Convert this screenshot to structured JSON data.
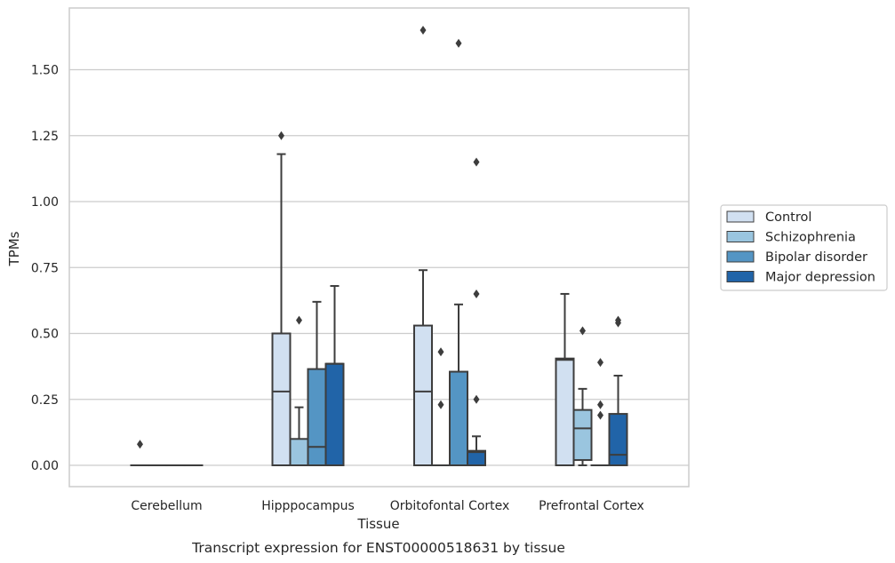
{
  "chart_data": {
    "type": "box",
    "title": "",
    "caption": "Transcript expression for ENST00000518631 by tissue",
    "xlabel": "Tissue",
    "ylabel": "TPMs",
    "ylim": [
      -0.08,
      1.76
    ],
    "yticks": [
      "0.00",
      "0.25",
      "0.50",
      "0.75",
      "1.00",
      "1.25",
      "1.50"
    ],
    "ytick_values": [
      0,
      0.25,
      0.5,
      0.75,
      1.0,
      1.25,
      1.5
    ],
    "grid": "horizontal",
    "legend_position": "right",
    "categories": [
      "Cerebellum",
      "Hipppocampus",
      "Orbitofontal Cortex",
      "Prefrontal Cortex"
    ],
    "series": [
      {
        "name": "Control",
        "color": "#d1e0f1",
        "boxes": [
          {
            "q1": 0,
            "median": 0,
            "q3": 0,
            "whisker_low": 0,
            "whisker_high": 0,
            "outliers": [
              0.08
            ]
          },
          {
            "q1": 0,
            "median": 0.28,
            "q3": 0.5,
            "whisker_low": 0,
            "whisker_high": 1.18,
            "outliers": [
              1.25
            ]
          },
          {
            "q1": 0,
            "median": 0.28,
            "q3": 0.53,
            "whisker_low": 0,
            "whisker_high": 0.74,
            "outliers": [
              1.65
            ]
          },
          {
            "q1": 0,
            "median": 0.4,
            "q3": 0.405,
            "whisker_low": 0,
            "whisker_high": 0.65,
            "outliers": []
          }
        ]
      },
      {
        "name": "Schizophrenia",
        "color": "#9ac5df",
        "boxes": [
          {
            "q1": 0,
            "median": 0,
            "q3": 0,
            "whisker_low": 0,
            "whisker_high": 0,
            "outliers": []
          },
          {
            "q1": 0,
            "median": 0,
            "q3": 0.1,
            "whisker_low": 0,
            "whisker_high": 0.22,
            "outliers": [
              0.55
            ]
          },
          {
            "q1": 0,
            "median": 0,
            "q3": 0,
            "whisker_low": 0,
            "whisker_high": 0,
            "outliers": [
              0.43,
              0.23
            ]
          },
          {
            "q1": 0.02,
            "median": 0.14,
            "q3": 0.21,
            "whisker_low": 0,
            "whisker_high": 0.29,
            "outliers": [
              0.51
            ]
          }
        ]
      },
      {
        "name": "Bipolar disorder",
        "color": "#5495c4",
        "boxes": [
          {
            "q1": 0,
            "median": 0,
            "q3": 0,
            "whisker_low": 0,
            "whisker_high": 0,
            "outliers": []
          },
          {
            "q1": 0,
            "median": 0.07,
            "q3": 0.365,
            "whisker_low": 0,
            "whisker_high": 0.62,
            "outliers": []
          },
          {
            "q1": 0,
            "median": 0,
            "q3": 0.355,
            "whisker_low": 0,
            "whisker_high": 0.61,
            "outliers": [
              1.6
            ]
          },
          {
            "q1": 0,
            "median": 0,
            "q3": 0,
            "whisker_low": 0,
            "whisker_high": 0,
            "outliers": [
              0.39,
              0.23,
              0.19
            ]
          }
        ]
      },
      {
        "name": "Major depression",
        "color": "#2164a8",
        "boxes": [
          {
            "q1": 0,
            "median": 0,
            "q3": 0,
            "whisker_low": 0,
            "whisker_high": 0,
            "outliers": []
          },
          {
            "q1": 0,
            "median": 0.385,
            "q3": 0.385,
            "whisker_low": 0,
            "whisker_high": 0.68,
            "outliers": []
          },
          {
            "q1": 0,
            "median": 0.05,
            "q3": 0.055,
            "whisker_low": 0,
            "whisker_high": 0.11,
            "outliers": [
              1.15,
              0.65,
              0.25
            ]
          },
          {
            "q1": 0,
            "median": 0.04,
            "q3": 0.195,
            "whisker_low": 0,
            "whisker_high": 0.34,
            "outliers": [
              0.55,
              0.54
            ]
          }
        ]
      }
    ]
  }
}
